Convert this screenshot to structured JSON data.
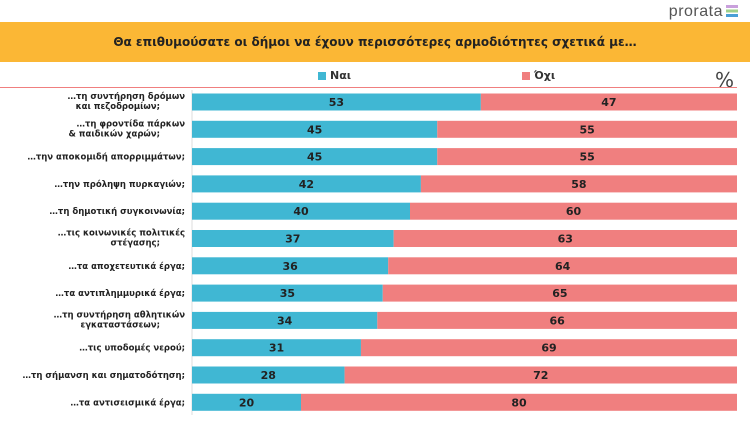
{
  "logo": "prorata",
  "title": "Θα επιθυμούσατε οι δήμοι να έχουν περισσότερες αρμοδιότητες σχετικά με…",
  "unit_symbol": "%",
  "chart_data": {
    "type": "bar",
    "stacked": true,
    "orientation": "horizontal",
    "title": "Θα επιθυμούσατε οι δήμοι να έχουν περισσότερες αρμοδιότητες σχετικά με…",
    "legend_position": "top",
    "xlim": [
      0,
      100
    ],
    "categories": [
      "…τη συντήρηση δρόμων και πεζοδρομίων;",
      "…τη φροντίδα πάρκων & παιδικών χαρών;",
      "…την αποκομιδή απορριμμάτων;",
      "…την πρόληψη πυρκαγιών;",
      "…τη δημοτική συγκοινωνία;",
      "…τις κοινωνικές πολιτικές στέγασης;",
      "…τα αποχετευτικά έργα;",
      "…τα αντιπλημμυρικά έργα;",
      "…τη συντήρηση αθλητικών εγκαταστάσεων;",
      "…τις υποδομές νερού;",
      "…τη σήμανση και σηματοδότηση;",
      "…τα αντισεισμικά έργα;"
    ],
    "series": [
      {
        "name": "Ναι",
        "color": "#40B7D3",
        "values": [
          53,
          45,
          45,
          42,
          40,
          37,
          36,
          35,
          34,
          31,
          28,
          20
        ]
      },
      {
        "name": "Όχι",
        "color": "#F07F7F",
        "values": [
          47,
          55,
          55,
          58,
          60,
          63,
          64,
          65,
          66,
          69,
          72,
          80
        ]
      }
    ]
  }
}
